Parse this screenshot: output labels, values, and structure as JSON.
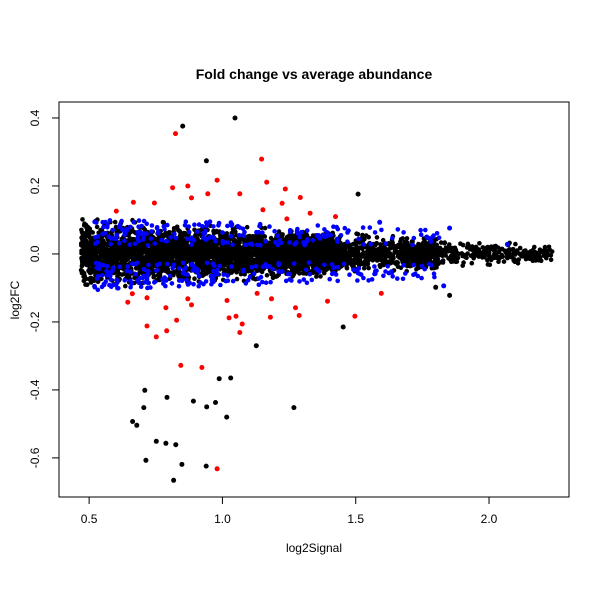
{
  "chart_data": {
    "type": "scatter",
    "title": "Fold change vs average abundance",
    "xlabel": "log2Signal",
    "ylabel": "log2FC",
    "xlim": [
      0.387,
      2.3
    ],
    "ylim": [
      -0.715,
      0.447
    ],
    "xticks": [
      0.5,
      1.0,
      1.5,
      2.0
    ],
    "xtick_labels": [
      "0.5",
      "1.0",
      "1.5",
      "2.0"
    ],
    "yticks": [
      0.4,
      0.2,
      0.0,
      -0.2,
      -0.4,
      -0.6
    ],
    "ytick_labels": [
      "0.4",
      "0.2",
      "0.0",
      "-0.2",
      "-0.4",
      "-0.6"
    ],
    "grid": false,
    "legend": "none",
    "series": [
      {
        "color": "#000000",
        "note_points": "dense cloud around 0 from x≈0.47 to 2.24, spread narrowing with x; listed points are outliers",
        "points": [
          [
            1.047,
            0.4
          ],
          [
            0.851,
            0.376
          ],
          [
            0.94,
            0.274
          ],
          [
            1.509,
            0.176
          ],
          [
            0.817,
            -0.666
          ],
          [
            0.848,
            -0.619
          ],
          [
            0.939,
            -0.624
          ],
          [
            0.752,
            -0.551
          ],
          [
            0.788,
            -0.557
          ],
          [
            0.825,
            -0.561
          ],
          [
            0.713,
            -0.607
          ],
          [
            0.663,
            -0.493
          ],
          [
            0.679,
            -0.504
          ],
          [
            0.709,
            -0.401
          ],
          [
            0.705,
            -0.452
          ],
          [
            0.792,
            -0.422
          ],
          [
            0.891,
            -0.433
          ],
          [
            0.941,
            -0.45
          ],
          [
            0.974,
            -0.437
          ],
          [
            1.016,
            -0.48
          ],
          [
            1.268,
            -0.452
          ],
          [
            0.988,
            -0.367
          ],
          [
            1.031,
            -0.365
          ],
          [
            1.127,
            -0.27
          ],
          [
            1.453,
            -0.215
          ],
          [
            1.852,
            -0.122
          ],
          [
            1.8,
            -0.098
          ]
        ]
      },
      {
        "color": "#ff0000",
        "points": [
          [
            0.824,
            0.354
          ],
          [
            1.147,
            0.279
          ],
          [
            0.98,
            0.217
          ],
          [
            0.87,
            0.2
          ],
          [
            0.813,
            0.195
          ],
          [
            1.166,
            0.211
          ],
          [
            1.236,
            0.191
          ],
          [
            1.292,
            0.166
          ],
          [
            1.224,
            0.149
          ],
          [
            1.152,
            0.13
          ],
          [
            1.329,
            0.12
          ],
          [
            1.424,
            0.11
          ],
          [
            1.242,
            0.103
          ],
          [
            0.666,
            0.152
          ],
          [
            0.602,
            0.126
          ],
          [
            0.745,
            0.15
          ],
          [
            0.945,
            0.177
          ],
          [
            1.065,
            0.177
          ],
          [
            0.884,
            0.165
          ],
          [
            1.596,
            -0.116
          ],
          [
            1.497,
            -0.183
          ],
          [
            1.274,
            -0.158
          ],
          [
            1.288,
            -0.181
          ],
          [
            1.394,
            -0.139
          ],
          [
            1.184,
            -0.132
          ],
          [
            1.18,
            -0.186
          ],
          [
            1.13,
            -0.116
          ],
          [
            1.065,
            -0.231
          ],
          [
            1.074,
            -0.206
          ],
          [
            1.051,
            -0.183
          ],
          [
            1.025,
            -0.188
          ],
          [
            1.017,
            -0.137
          ],
          [
            0.844,
            -0.328
          ],
          [
            0.923,
            -0.334
          ],
          [
            0.98,
            -0.632
          ],
          [
            0.752,
            -0.244
          ],
          [
            0.791,
            -0.226
          ],
          [
            0.717,
            -0.212
          ],
          [
            0.828,
            -0.195
          ],
          [
            0.884,
            -0.15
          ],
          [
            0.87,
            -0.132
          ],
          [
            0.717,
            -0.129
          ],
          [
            0.645,
            -0.142
          ],
          [
            0.662,
            -0.117
          ],
          [
            0.788,
            -0.158
          ]
        ]
      },
      {
        "color": "#0000ff",
        "note_points": "many points at |log2FC| ≈ 0.03–0.10 across x 0.5–1.85; listed points are the extremes",
        "points": [
          [
            1.852,
            0.076
          ],
          [
            1.59,
            0.093
          ],
          [
            1.83,
            -0.094
          ],
          [
            2.069,
            0.028
          ]
        ]
      }
    ]
  }
}
